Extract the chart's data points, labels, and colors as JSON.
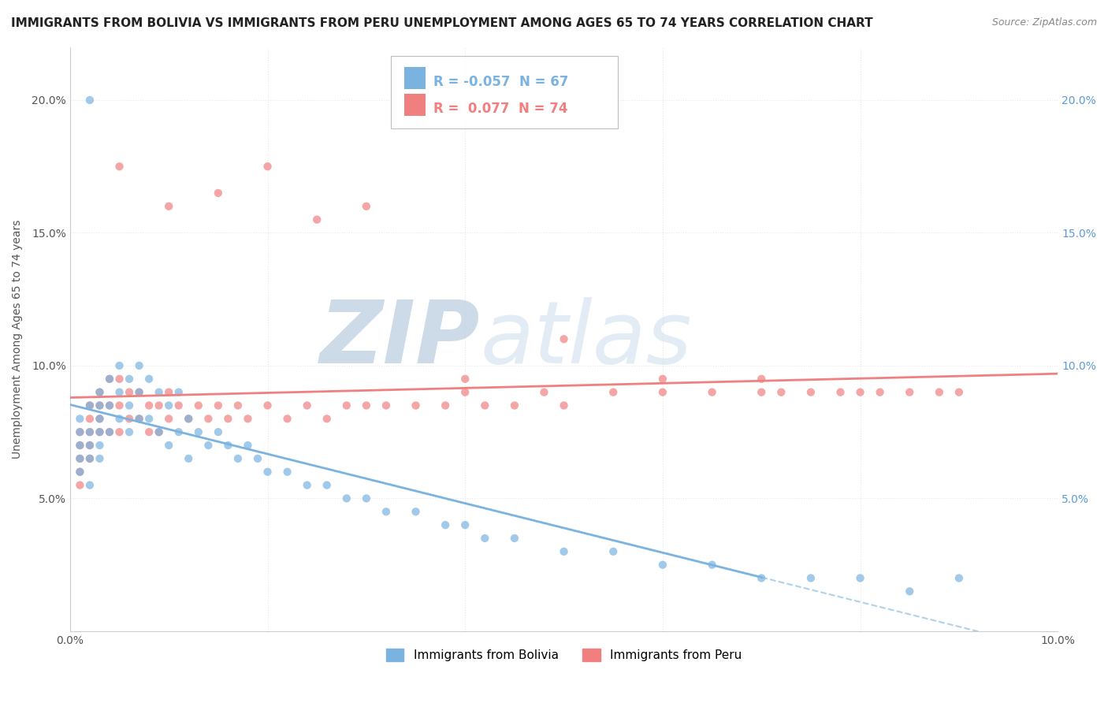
{
  "title": "IMMIGRANTS FROM BOLIVIA VS IMMIGRANTS FROM PERU UNEMPLOYMENT AMONG AGES 65 TO 74 YEARS CORRELATION CHART",
  "source": "Source: ZipAtlas.com",
  "ylabel": "Unemployment Among Ages 65 to 74 years",
  "xlabel_bolivia": "Immigrants from Bolivia",
  "xlabel_peru": "Immigrants from Peru",
  "xlim": [
    0.0,
    0.1
  ],
  "ylim": [
    0.0,
    0.22
  ],
  "bolivia_color": "#7ab3e0",
  "peru_color": "#f08080",
  "bolivia_R": -0.057,
  "bolivia_N": 67,
  "peru_R": 0.077,
  "peru_N": 74,
  "bolivia_scatter_x": [
    0.001,
    0.001,
    0.001,
    0.001,
    0.001,
    0.002,
    0.002,
    0.002,
    0.002,
    0.002,
    0.003,
    0.003,
    0.003,
    0.003,
    0.003,
    0.003,
    0.004,
    0.004,
    0.004,
    0.005,
    0.005,
    0.005,
    0.006,
    0.006,
    0.006,
    0.007,
    0.007,
    0.007,
    0.008,
    0.008,
    0.009,
    0.009,
    0.01,
    0.01,
    0.011,
    0.011,
    0.012,
    0.012,
    0.013,
    0.014,
    0.015,
    0.016,
    0.017,
    0.018,
    0.019,
    0.02,
    0.022,
    0.024,
    0.026,
    0.028,
    0.03,
    0.032,
    0.035,
    0.038,
    0.04,
    0.042,
    0.045,
    0.05,
    0.055,
    0.06,
    0.065,
    0.07,
    0.075,
    0.08,
    0.085,
    0.09,
    0.002
  ],
  "bolivia_scatter_y": [
    0.075,
    0.08,
    0.07,
    0.065,
    0.06,
    0.085,
    0.075,
    0.07,
    0.065,
    0.055,
    0.09,
    0.085,
    0.08,
    0.075,
    0.07,
    0.065,
    0.095,
    0.085,
    0.075,
    0.1,
    0.09,
    0.08,
    0.095,
    0.085,
    0.075,
    0.1,
    0.09,
    0.08,
    0.095,
    0.08,
    0.09,
    0.075,
    0.085,
    0.07,
    0.09,
    0.075,
    0.08,
    0.065,
    0.075,
    0.07,
    0.075,
    0.07,
    0.065,
    0.07,
    0.065,
    0.06,
    0.06,
    0.055,
    0.055,
    0.05,
    0.05,
    0.045,
    0.045,
    0.04,
    0.04,
    0.035,
    0.035,
    0.03,
    0.03,
    0.025,
    0.025,
    0.02,
    0.02,
    0.02,
    0.015,
    0.02,
    0.2
  ],
  "peru_scatter_x": [
    0.001,
    0.001,
    0.001,
    0.001,
    0.001,
    0.002,
    0.002,
    0.002,
    0.002,
    0.002,
    0.003,
    0.003,
    0.003,
    0.003,
    0.004,
    0.004,
    0.004,
    0.005,
    0.005,
    0.005,
    0.006,
    0.006,
    0.007,
    0.007,
    0.008,
    0.008,
    0.009,
    0.009,
    0.01,
    0.01,
    0.011,
    0.012,
    0.013,
    0.014,
    0.015,
    0.016,
    0.017,
    0.018,
    0.02,
    0.022,
    0.024,
    0.026,
    0.028,
    0.03,
    0.032,
    0.035,
    0.038,
    0.04,
    0.042,
    0.045,
    0.048,
    0.05,
    0.055,
    0.06,
    0.065,
    0.07,
    0.072,
    0.075,
    0.078,
    0.08,
    0.082,
    0.085,
    0.088,
    0.09,
    0.005,
    0.01,
    0.015,
    0.02,
    0.025,
    0.03,
    0.04,
    0.05,
    0.06,
    0.07
  ],
  "peru_scatter_y": [
    0.075,
    0.07,
    0.065,
    0.06,
    0.055,
    0.085,
    0.08,
    0.075,
    0.07,
    0.065,
    0.09,
    0.085,
    0.08,
    0.075,
    0.095,
    0.085,
    0.075,
    0.095,
    0.085,
    0.075,
    0.09,
    0.08,
    0.09,
    0.08,
    0.085,
    0.075,
    0.085,
    0.075,
    0.09,
    0.08,
    0.085,
    0.08,
    0.085,
    0.08,
    0.085,
    0.08,
    0.085,
    0.08,
    0.085,
    0.08,
    0.085,
    0.08,
    0.085,
    0.085,
    0.085,
    0.085,
    0.085,
    0.09,
    0.085,
    0.085,
    0.09,
    0.085,
    0.09,
    0.09,
    0.09,
    0.09,
    0.09,
    0.09,
    0.09,
    0.09,
    0.09,
    0.09,
    0.09,
    0.09,
    0.175,
    0.16,
    0.165,
    0.175,
    0.155,
    0.16,
    0.095,
    0.11,
    0.095,
    0.095
  ],
  "background_color": "#ffffff",
  "watermark_zip": "ZIP",
  "watermark_atlas": "atlas",
  "watermark_color": "#c8d8ec",
  "grid_color": "#e8e8e8",
  "title_fontsize": 11,
  "axis_fontsize": 10,
  "tick_fontsize": 10,
  "legend_fontsize": 11
}
